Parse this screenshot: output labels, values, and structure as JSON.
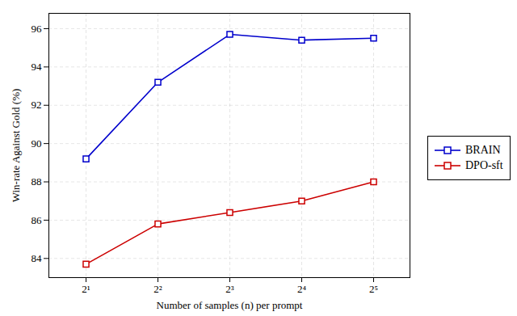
{
  "chart_data": {
    "type": "line",
    "xlabel": "Number of samples (n) per prompt",
    "ylabel": "Win-rate Against Gold (%)",
    "categories": [
      "2¹",
      "2²",
      "2³",
      "2⁴",
      "2⁵"
    ],
    "series": [
      {
        "name": "BRAIN",
        "color": "#0000cc",
        "values": [
          89.2,
          93.2,
          95.7,
          95.4,
          95.5
        ],
        "marker": "square",
        "line_style": "solid"
      },
      {
        "name": "DPO-sft",
        "color": "#cc0000",
        "values": [
          83.7,
          85.8,
          86.4,
          87.0,
          88.0
        ],
        "marker": "square",
        "line_style": "solid"
      }
    ],
    "ylim": [
      83.0,
      96.8
    ],
    "yticks": [
      84,
      86,
      88,
      90,
      92,
      94,
      96
    ],
    "grid": true,
    "legend": "center right"
  }
}
